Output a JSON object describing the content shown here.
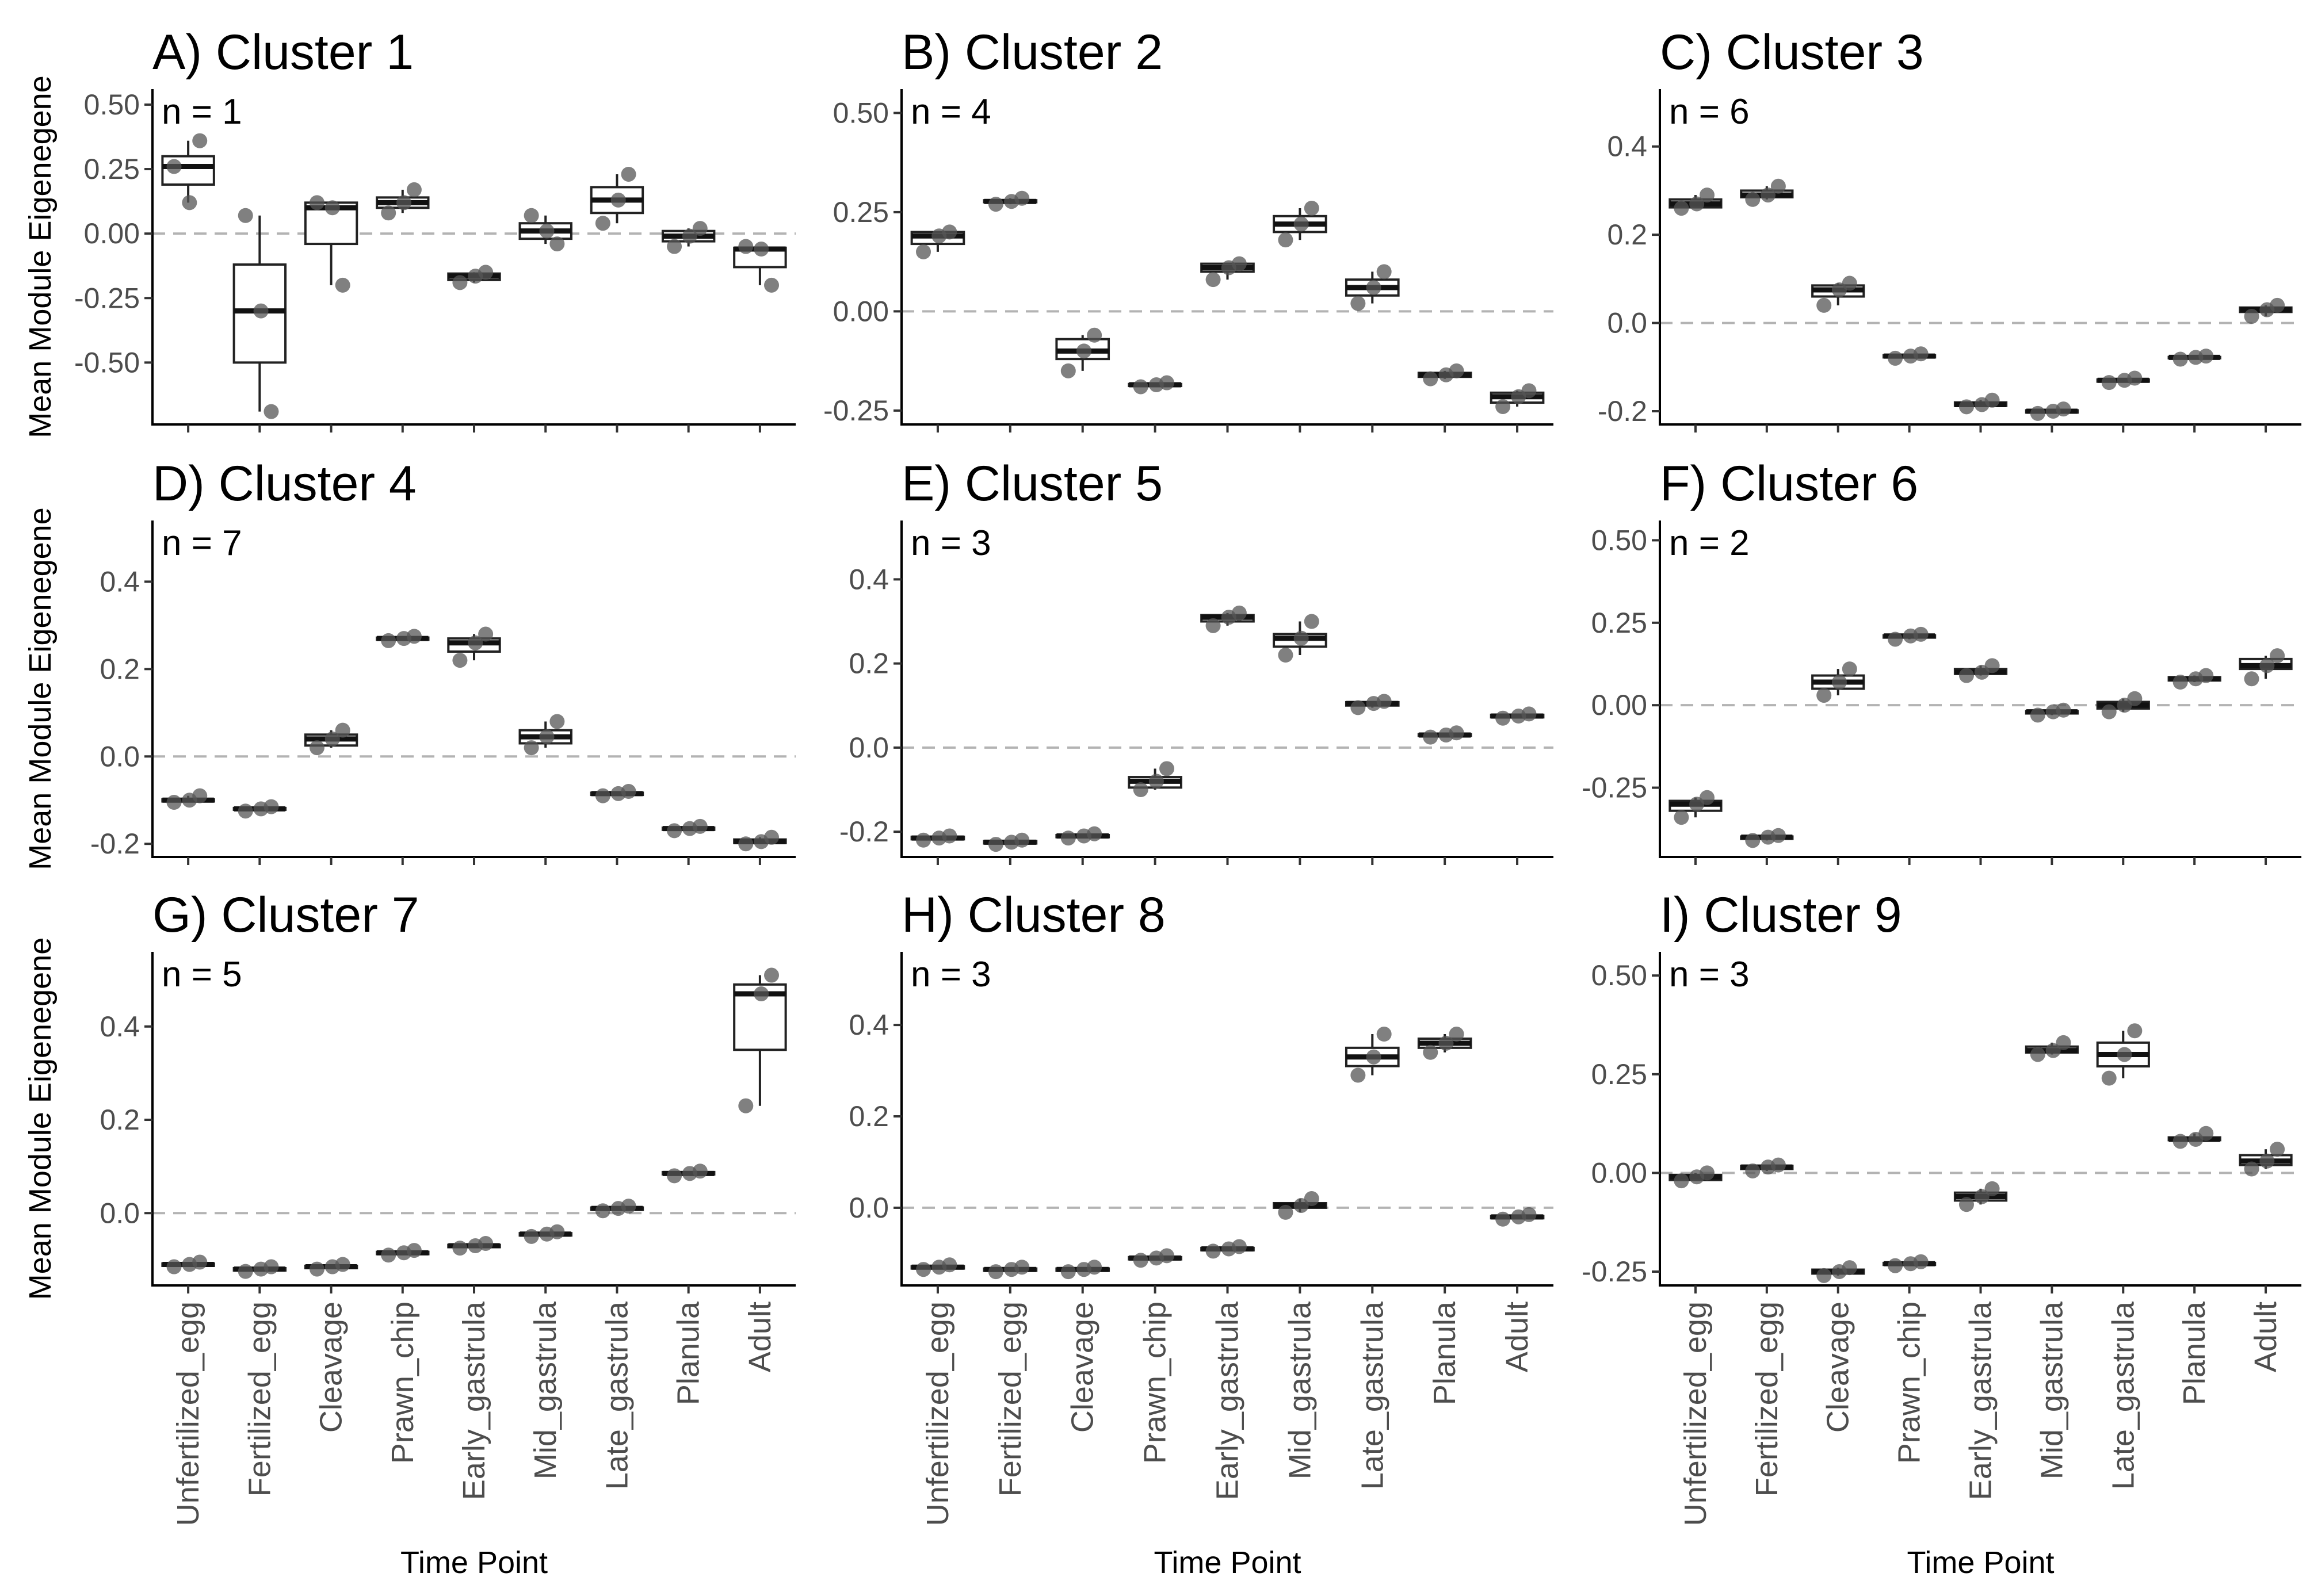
{
  "figure": {
    "xlabel": "Time Point",
    "ylabel": "Mean Module Eigenegene"
  },
  "chart_data": [
    {
      "type": "box",
      "title": "A) Cluster 1",
      "annotation": "n = 1",
      "ylim": [
        -0.74,
        0.56
      ],
      "yticks": [
        0.5,
        0.25,
        0,
        -0.25,
        -0.5
      ],
      "ytick_labels": [
        "0.50",
        "0.25",
        "0.00",
        "-0.25",
        "-0.50"
      ],
      "categories": [
        "Unfertilized_egg",
        "Fertilized_egg",
        "Cleavage",
        "Prawn_chip",
        "Early_gastrula",
        "Mid_gastrula",
        "Late_gastrula",
        "Planula",
        "Adult"
      ],
      "boxes": [
        [
          0.12,
          0.19,
          0.26,
          0.3,
          0.36
        ],
        [
          -0.69,
          -0.5,
          -0.3,
          -0.12,
          0.07
        ],
        [
          -0.2,
          -0.04,
          0.1,
          0.12,
          0.12
        ],
        [
          0.08,
          0.1,
          0.12,
          0.14,
          0.17
        ],
        [
          -0.19,
          -0.18,
          -0.165,
          -0.155,
          -0.15
        ],
        [
          -0.04,
          -0.02,
          0.01,
          0.04,
          0.07
        ],
        [
          0.04,
          0.08,
          0.13,
          0.18,
          0.23
        ],
        [
          -0.05,
          -0.03,
          -0.01,
          0.01,
          0.02
        ],
        [
          -0.2,
          -0.13,
          -0.06,
          -0.055,
          -0.05
        ]
      ],
      "points": [
        [
          0.26,
          0.36,
          0.12
        ],
        [
          0.07,
          -0.69,
          -0.3
        ],
        [
          0.12,
          -0.2,
          0.1
        ],
        [
          0.08,
          0.17,
          0.12
        ],
        [
          -0.19,
          -0.15,
          -0.165
        ],
        [
          0.07,
          -0.04,
          0.01
        ],
        [
          0.04,
          0.23,
          0.13
        ],
        [
          -0.05,
          0.02,
          -0.01
        ],
        [
          -0.05,
          -0.2,
          -0.06
        ]
      ]
    },
    {
      "type": "box",
      "title": "B) Cluster 2",
      "annotation": "n = 4",
      "ylim": [
        -0.285,
        0.56
      ],
      "yticks": [
        0.5,
        0.25,
        0,
        -0.25
      ],
      "ytick_labels": [
        "0.50",
        "0.25",
        "0.00",
        "-0.25"
      ],
      "categories": [
        "Unfertilized_egg",
        "Fertilized_egg",
        "Cleavage",
        "Prawn_chip",
        "Early_gastrula",
        "Mid_gastrula",
        "Late_gastrula",
        "Planula",
        "Adult"
      ],
      "boxes": [
        [
          0.15,
          0.17,
          0.19,
          0.2,
          0.2
        ],
        [
          0.27,
          0.275,
          0.277,
          0.28,
          0.285
        ],
        [
          -0.15,
          -0.12,
          -0.1,
          -0.07,
          -0.06
        ],
        [
          -0.19,
          -0.188,
          -0.185,
          -0.183,
          -0.18
        ],
        [
          0.08,
          0.1,
          0.11,
          0.12,
          0.12
        ],
        [
          0.18,
          0.2,
          0.22,
          0.24,
          0.26
        ],
        [
          0.02,
          0.04,
          0.06,
          0.08,
          0.1
        ],
        [
          -0.17,
          -0.165,
          -0.16,
          -0.155,
          -0.15
        ],
        [
          -0.24,
          -0.23,
          -0.215,
          -0.205,
          -0.2
        ]
      ],
      "points": [
        [
          0.15,
          0.2,
          0.19
        ],
        [
          0.27,
          0.285,
          0.277
        ],
        [
          -0.15,
          -0.06,
          -0.1
        ],
        [
          -0.19,
          -0.18,
          -0.185
        ],
        [
          0.08,
          0.12,
          0.11
        ],
        [
          0.18,
          0.26,
          0.22
        ],
        [
          0.02,
          0.1,
          0.06
        ],
        [
          -0.17,
          -0.15,
          -0.16
        ],
        [
          -0.24,
          -0.2,
          -0.215
        ]
      ]
    },
    {
      "type": "box",
      "title": "C) Cluster 3",
      "annotation": "n = 6",
      "ylim": [
        -0.23,
        0.53
      ],
      "yticks": [
        0.4,
        0.2,
        0,
        -0.2
      ],
      "ytick_labels": [
        "0.4",
        "0.2",
        "0.0",
        "-0.2"
      ],
      "categories": [
        "Unfertilized_egg",
        "Fertilized_egg",
        "Cleavage",
        "Prawn_chip",
        "Early_gastrula",
        "Mid_gastrula",
        "Late_gastrula",
        "Planula",
        "Adult"
      ],
      "boxes": [
        [
          0.26,
          0.262,
          0.27,
          0.28,
          0.29
        ],
        [
          0.28,
          0.285,
          0.29,
          0.3,
          0.31
        ],
        [
          0.04,
          0.06,
          0.075,
          0.085,
          0.09
        ],
        [
          -0.08,
          -0.078,
          -0.075,
          -0.073,
          -0.07
        ],
        [
          -0.19,
          -0.188,
          -0.185,
          -0.18,
          -0.175
        ],
        [
          -0.205,
          -0.203,
          -0.2,
          -0.198,
          -0.195
        ],
        [
          -0.135,
          -0.133,
          -0.13,
          -0.128,
          -0.125
        ],
        [
          -0.082,
          -0.08,
          -0.078,
          -0.077,
          -0.075
        ],
        [
          0.015,
          0.025,
          0.03,
          0.035,
          0.04
        ]
      ],
      "points": [
        [
          0.26,
          0.29,
          0.27
        ],
        [
          0.28,
          0.31,
          0.29
        ],
        [
          0.04,
          0.09,
          0.075
        ],
        [
          -0.08,
          -0.07,
          -0.075
        ],
        [
          -0.19,
          -0.175,
          -0.185
        ],
        [
          -0.205,
          -0.195,
          -0.2
        ],
        [
          -0.135,
          -0.125,
          -0.13
        ],
        [
          -0.082,
          -0.075,
          -0.078
        ],
        [
          0.015,
          0.04,
          0.03
        ]
      ]
    },
    {
      "type": "box",
      "title": "D) Cluster 4",
      "annotation": "n = 7",
      "ylim": [
        -0.23,
        0.54
      ],
      "yticks": [
        0.4,
        0.2,
        0,
        -0.2
      ],
      "ytick_labels": [
        "0.4",
        "0.2",
        "0.0",
        "-0.2"
      ],
      "categories": [
        "Unfertilized_egg",
        "Fertilized_egg",
        "Cleavage",
        "Prawn_chip",
        "Early_gastrula",
        "Mid_gastrula",
        "Late_gastrula",
        "Planula",
        "Adult"
      ],
      "boxes": [
        [
          -0.105,
          -0.103,
          -0.1,
          -0.098,
          -0.09
        ],
        [
          -0.125,
          -0.122,
          -0.12,
          -0.118,
          -0.115
        ],
        [
          0.02,
          0.025,
          0.04,
          0.05,
          0.06
        ],
        [
          0.265,
          0.267,
          0.27,
          0.272,
          0.275
        ],
        [
          0.22,
          0.24,
          0.26,
          0.27,
          0.28
        ],
        [
          0.02,
          0.03,
          0.045,
          0.06,
          0.08
        ],
        [
          -0.09,
          -0.088,
          -0.085,
          -0.083,
          -0.08
        ],
        [
          -0.17,
          -0.168,
          -0.165,
          -0.163,
          -0.16
        ],
        [
          -0.2,
          -0.198,
          -0.195,
          -0.19,
          -0.185
        ]
      ],
      "points": [
        [
          -0.105,
          -0.09,
          -0.1
        ],
        [
          -0.125,
          -0.115,
          -0.12
        ],
        [
          0.02,
          0.06,
          0.04
        ],
        [
          0.265,
          0.275,
          0.27
        ],
        [
          0.22,
          0.28,
          0.26
        ],
        [
          0.02,
          0.08,
          0.045
        ],
        [
          -0.09,
          -0.08,
          -0.085
        ],
        [
          -0.17,
          -0.16,
          -0.165
        ],
        [
          -0.2,
          -0.185,
          -0.195
        ]
      ]
    },
    {
      "type": "box",
      "title": "E) Cluster 5",
      "annotation": "n = 3",
      "ylim": [
        -0.26,
        0.54
      ],
      "yticks": [
        0.4,
        0.2,
        0,
        -0.2
      ],
      "ytick_labels": [
        "0.4",
        "0.2",
        "0.0",
        "-0.2"
      ],
      "categories": [
        "Unfertilized_egg",
        "Fertilized_egg",
        "Cleavage",
        "Prawn_chip",
        "Early_gastrula",
        "Mid_gastrula",
        "Late_gastrula",
        "Planula",
        "Adult"
      ],
      "boxes": [
        [
          -0.22,
          -0.218,
          -0.215,
          -0.212,
          -0.21
        ],
        [
          -0.23,
          -0.228,
          -0.225,
          -0.222,
          -0.22
        ],
        [
          -0.215,
          -0.213,
          -0.21,
          -0.208,
          -0.205
        ],
        [
          -0.1,
          -0.095,
          -0.08,
          -0.07,
          -0.05
        ],
        [
          0.29,
          0.3,
          0.31,
          0.315,
          0.32
        ],
        [
          0.22,
          0.24,
          0.26,
          0.27,
          0.3
        ],
        [
          0.095,
          0.1,
          0.105,
          0.108,
          0.11
        ],
        [
          0.025,
          0.028,
          0.03,
          0.032,
          0.035
        ],
        [
          0.07,
          0.072,
          0.075,
          0.078,
          0.08
        ]
      ],
      "points": [
        [
          -0.22,
          -0.21,
          -0.215
        ],
        [
          -0.23,
          -0.22,
          -0.225
        ],
        [
          -0.215,
          -0.205,
          -0.21
        ],
        [
          -0.1,
          -0.05,
          -0.08
        ],
        [
          0.29,
          0.32,
          0.31
        ],
        [
          0.22,
          0.3,
          0.26
        ],
        [
          0.095,
          0.11,
          0.105
        ],
        [
          0.025,
          0.035,
          0.03
        ],
        [
          0.07,
          0.08,
          0.075
        ]
      ]
    },
    {
      "type": "box",
      "title": "F) Cluster 6",
      "annotation": "n = 2",
      "ylim": [
        -0.46,
        0.56
      ],
      "yticks": [
        0.5,
        0.25,
        0,
        -0.25
      ],
      "ytick_labels": [
        "0.50",
        "0.25",
        "0.00",
        "-0.25"
      ],
      "categories": [
        "Unfertilized_egg",
        "Fertilized_egg",
        "Cleavage",
        "Prawn_chip",
        "Early_gastrula",
        "Mid_gastrula",
        "Late_gastrula",
        "Planula",
        "Adult"
      ],
      "boxes": [
        [
          -0.34,
          -0.32,
          -0.3,
          -0.29,
          -0.28
        ],
        [
          -0.41,
          -0.405,
          -0.4,
          -0.398,
          -0.395
        ],
        [
          0.03,
          0.05,
          0.07,
          0.09,
          0.11
        ],
        [
          0.2,
          0.205,
          0.21,
          0.212,
          0.215
        ],
        [
          0.09,
          0.095,
          0.1,
          0.11,
          0.12
        ],
        [
          -0.03,
          -0.025,
          -0.02,
          -0.018,
          -0.015
        ],
        [
          -0.02,
          -0.01,
          0.0,
          0.01,
          0.02
        ],
        [
          0.07,
          0.075,
          0.08,
          0.085,
          0.09
        ],
        [
          0.08,
          0.11,
          0.12,
          0.14,
          0.15
        ]
      ],
      "points": [
        [
          -0.34,
          -0.28,
          -0.3
        ],
        [
          -0.41,
          -0.395,
          -0.4
        ],
        [
          0.03,
          0.11,
          0.07
        ],
        [
          0.2,
          0.215,
          0.21
        ],
        [
          0.09,
          0.12,
          0.1
        ],
        [
          -0.03,
          -0.015,
          -0.02
        ],
        [
          -0.02,
          0.02,
          0.0
        ],
        [
          0.07,
          0.09,
          0.08
        ],
        [
          0.08,
          0.15,
          0.12
        ]
      ]
    },
    {
      "type": "box",
      "title": "G) Cluster 7",
      "annotation": "n = 5",
      "ylim": [
        -0.155,
        0.56
      ],
      "yticks": [
        0.4,
        0.2,
        0
      ],
      "ytick_labels": [
        "0.4",
        "0.2",
        "0.0"
      ],
      "categories": [
        "Unfertilized_egg",
        "Fertilized_egg",
        "Cleavage",
        "Prawn_chip",
        "Early_gastrula",
        "Mid_gastrula",
        "Late_gastrula",
        "Planula",
        "Adult"
      ],
      "boxes": [
        [
          -0.115,
          -0.113,
          -0.11,
          -0.108,
          -0.105
        ],
        [
          -0.125,
          -0.123,
          -0.12,
          -0.118,
          -0.115
        ],
        [
          -0.12,
          -0.118,
          -0.115,
          -0.113,
          -0.11
        ],
        [
          -0.09,
          -0.088,
          -0.085,
          -0.083,
          -0.08
        ],
        [
          -0.075,
          -0.073,
          -0.07,
          -0.068,
          -0.065
        ],
        [
          -0.05,
          -0.048,
          -0.045,
          -0.043,
          -0.04
        ],
        [
          0.005,
          0.007,
          0.01,
          0.012,
          0.015
        ],
        [
          0.08,
          0.083,
          0.085,
          0.088,
          0.09
        ],
        [
          0.23,
          0.35,
          0.47,
          0.49,
          0.51
        ]
      ],
      "points": [
        [
          -0.115,
          -0.105,
          -0.11
        ],
        [
          -0.125,
          -0.115,
          -0.12
        ],
        [
          -0.12,
          -0.11,
          -0.115
        ],
        [
          -0.09,
          -0.08,
          -0.085
        ],
        [
          -0.075,
          -0.065,
          -0.07
        ],
        [
          -0.05,
          -0.04,
          -0.045
        ],
        [
          0.005,
          0.015,
          0.01
        ],
        [
          0.08,
          0.09,
          0.085
        ],
        [
          0.23,
          0.51,
          0.47
        ]
      ]
    },
    {
      "type": "box",
      "title": "H) Cluster 8",
      "annotation": "n = 3",
      "ylim": [
        -0.17,
        0.56
      ],
      "yticks": [
        0.4,
        0.2,
        0
      ],
      "ytick_labels": [
        "0.4",
        "0.2",
        "0.0"
      ],
      "categories": [
        "Unfertilized_egg",
        "Fertilized_egg",
        "Cleavage",
        "Prawn_chip",
        "Early_gastrula",
        "Mid_gastrula",
        "Late_gastrula",
        "Planula",
        "Adult"
      ],
      "boxes": [
        [
          -0.135,
          -0.133,
          -0.13,
          -0.128,
          -0.125
        ],
        [
          -0.14,
          -0.138,
          -0.135,
          -0.133,
          -0.13
        ],
        [
          -0.14,
          -0.138,
          -0.135,
          -0.133,
          -0.13
        ],
        [
          -0.115,
          -0.113,
          -0.11,
          -0.108,
          -0.105
        ],
        [
          -0.095,
          -0.093,
          -0.09,
          -0.088,
          -0.085
        ],
        [
          -0.01,
          0.0,
          0.005,
          0.01,
          0.02
        ],
        [
          0.29,
          0.31,
          0.33,
          0.35,
          0.38
        ],
        [
          0.34,
          0.35,
          0.36,
          0.37,
          0.38
        ],
        [
          -0.025,
          -0.023,
          -0.02,
          -0.018,
          -0.015
        ]
      ],
      "points": [
        [
          -0.135,
          -0.125,
          -0.13
        ],
        [
          -0.14,
          -0.13,
          -0.135
        ],
        [
          -0.14,
          -0.13,
          -0.135
        ],
        [
          -0.115,
          -0.105,
          -0.11
        ],
        [
          -0.095,
          -0.085,
          -0.09
        ],
        [
          -0.01,
          0.02,
          0.005
        ],
        [
          0.29,
          0.38,
          0.33
        ],
        [
          0.34,
          0.38,
          0.36
        ],
        [
          -0.025,
          -0.015,
          -0.02
        ]
      ]
    },
    {
      "type": "box",
      "title": "I) Cluster 9",
      "annotation": "n = 3",
      "ylim": [
        -0.285,
        0.56
      ],
      "yticks": [
        0.5,
        0.25,
        0,
        -0.25
      ],
      "ytick_labels": [
        "0.50",
        "0.25",
        "0.00",
        "-0.25"
      ],
      "categories": [
        "Unfertilized_egg",
        "Fertilized_egg",
        "Cleavage",
        "Prawn_chip",
        "Early_gastrula",
        "Mid_gastrula",
        "Late_gastrula",
        "Planula",
        "Adult"
      ],
      "boxes": [
        [
          -0.02,
          -0.018,
          -0.01,
          -0.005,
          0.0
        ],
        [
          0.005,
          0.01,
          0.015,
          0.018,
          0.02
        ],
        [
          -0.26,
          -0.255,
          -0.25,
          -0.245,
          -0.24
        ],
        [
          -0.235,
          -0.233,
          -0.23,
          -0.228,
          -0.225
        ],
        [
          -0.08,
          -0.07,
          -0.06,
          -0.05,
          -0.04
        ],
        [
          0.3,
          0.305,
          0.31,
          0.32,
          0.33
        ],
        [
          0.24,
          0.27,
          0.3,
          0.33,
          0.36
        ],
        [
          0.08,
          0.083,
          0.085,
          0.09,
          0.1
        ],
        [
          0.01,
          0.02,
          0.03,
          0.045,
          0.06
        ]
      ],
      "points": [
        [
          -0.02,
          0.0,
          -0.01
        ],
        [
          0.005,
          0.02,
          0.015
        ],
        [
          -0.26,
          -0.24,
          -0.25
        ],
        [
          -0.235,
          -0.225,
          -0.23
        ],
        [
          -0.08,
          -0.04,
          -0.06
        ],
        [
          0.3,
          0.33,
          0.31
        ],
        [
          0.24,
          0.36,
          0.3
        ],
        [
          0.08,
          0.1,
          0.085
        ],
        [
          0.01,
          0.06,
          0.03
        ]
      ]
    }
  ]
}
